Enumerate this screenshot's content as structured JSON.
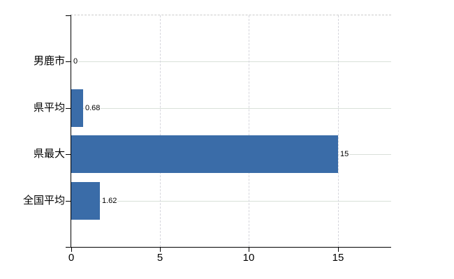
{
  "chart_data": {
    "type": "bar",
    "orientation": "horizontal",
    "title": "",
    "xlabel": "",
    "ylabel": "",
    "categories": [
      "男鹿市",
      "県平均",
      "県最大",
      "全国平均"
    ],
    "values": [
      0,
      0.68,
      15,
      1.62
    ],
    "value_labels": [
      "0",
      "0.68",
      "15",
      "1.62"
    ],
    "xlim": [
      0,
      18
    ],
    "x_ticks": [
      0,
      5,
      10,
      15
    ],
    "x_tick_labels": [
      "0",
      "5",
      "10",
      "15"
    ],
    "legend": "none",
    "grid": {
      "horizontal": "solid",
      "vertical": "dashed"
    },
    "colors": {
      "bar": "#3a6ca8",
      "grid_horizontal": "#d9e0d9",
      "grid_vertical": "#d5d5dc",
      "plot_top_border": "#cbcbcb",
      "axis": "#000000",
      "text": "#000000",
      "background": "#ffffff"
    }
  }
}
